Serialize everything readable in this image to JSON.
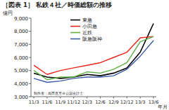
{
  "chart_data": {
    "type": "line",
    "title": "［図表 1］ 私鉄４社／時価総額の推移",
    "y_label": "億円",
    "x_label": "年月",
    "annotation": "制作者：高田直芳＠公認会計士",
    "categories": [
      "11/3",
      "11/6",
      "11/9",
      "11/12",
      "12/3",
      "12/6",
      "12/9",
      "12/12",
      "13/3",
      "13/6"
    ],
    "series": [
      {
        "name": "東急",
        "color": "#000000",
        "values": [
          4800,
          4500,
          4400,
          4500,
          4700,
          4600,
          4800,
          5200,
          6400,
          8600
        ]
      },
      {
        "name": "小田急",
        "color": "#e8251c",
        "values": [
          5400,
          4700,
          5000,
          5200,
          5400,
          5600,
          6000,
          6400,
          7500,
          7600
        ]
      },
      {
        "name": "近鉄",
        "color": "#5cb146",
        "values": [
          5000,
          4300,
          4500,
          4500,
          4900,
          4800,
          5100,
          5600,
          7200,
          7600
        ]
      },
      {
        "name": "阪急阪神",
        "color": "#3a5ba8",
        "values": [
          4400,
          4100,
          4200,
          4400,
          4500,
          4500,
          4600,
          5100,
          6100,
          7300
        ]
      }
    ],
    "ylim": [
      3000,
      9000
    ],
    "yticks": [
      {
        "value": 3000,
        "label": "3,000"
      },
      {
        "value": 4000,
        "label": "4,000"
      },
      {
        "value": 5000,
        "label": "5,000"
      },
      {
        "value": 6000,
        "label": "6,000"
      },
      {
        "value": 7000,
        "label": "7,000"
      },
      {
        "value": 8000,
        "label": "8,000"
      },
      {
        "value": 9000,
        "label": "9,000"
      }
    ],
    "grid": false,
    "legend": "top"
  }
}
